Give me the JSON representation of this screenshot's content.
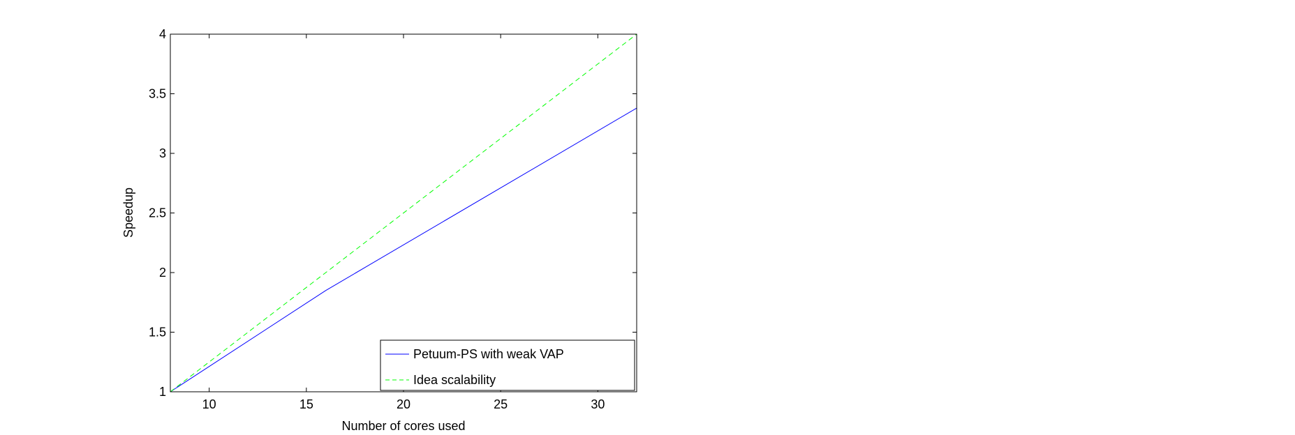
{
  "chart_data": {
    "type": "line",
    "title": "",
    "xlabel": "Number of cores used",
    "ylabel": "Speedup",
    "xlim": [
      8,
      32
    ],
    "ylim": [
      1,
      4
    ],
    "xticks": [
      10,
      15,
      20,
      25,
      30
    ],
    "yticks": [
      1,
      1.5,
      2,
      2.5,
      3,
      3.5,
      4
    ],
    "grid": false,
    "legend_position": "bottom-right",
    "series": [
      {
        "name": "Petuum-PS with weak VAP",
        "color": "#0000ff",
        "style": "solid",
        "x": [
          8,
          16,
          32
        ],
        "y": [
          1,
          1.85,
          3.38
        ]
      },
      {
        "name": "Idea scalability",
        "color": "#00ff00",
        "style": "dashed",
        "x": [
          8,
          32
        ],
        "y": [
          1,
          4
        ]
      }
    ]
  }
}
